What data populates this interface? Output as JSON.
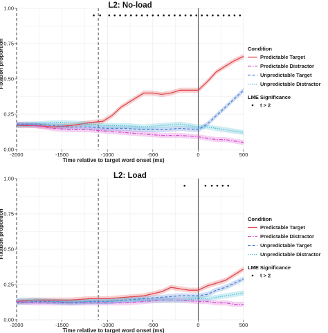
{
  "chart_data": [
    {
      "type": "line",
      "title": "L2: No-load",
      "xlabel": "Time relative to target word onset (ms)",
      "ylabel": "Fixation proportion",
      "xlim": [
        -2000,
        500
      ],
      "ylim": [
        0,
        1
      ],
      "xticks": [
        "-2000",
        "-1500",
        "-1000",
        "-500",
        "0",
        "500"
      ],
      "yticks": [
        "0.00",
        "0.25",
        "0.50",
        "0.75",
        "1.00"
      ],
      "vlines": [
        {
          "x": -2000,
          "style": "dashed"
        },
        {
          "x": -1100,
          "style": "dashed"
        },
        {
          "x": 0,
          "style": "solid"
        }
      ],
      "series": [
        {
          "name": "Predictable Target",
          "color": "#e0474c",
          "dash": "solid",
          "x": [
            -2000,
            -1800,
            -1600,
            -1400,
            -1200,
            -1050,
            -950,
            -850,
            -700,
            -600,
            -500,
            -400,
            -300,
            -200,
            -100,
            0,
            100,
            200,
            300,
            400,
            500
          ],
          "y": [
            0.17,
            0.17,
            0.16,
            0.17,
            0.19,
            0.2,
            0.24,
            0.3,
            0.36,
            0.4,
            0.4,
            0.39,
            0.4,
            0.42,
            0.42,
            0.42,
            0.48,
            0.55,
            0.59,
            0.63,
            0.66
          ]
        },
        {
          "name": "Predictable Distractor",
          "color": "#d94fd0",
          "dash": "dashdot",
          "x": [
            -2000,
            -1800,
            -1600,
            -1400,
            -1200,
            -1000,
            -800,
            -600,
            -400,
            -200,
            0,
            100,
            200,
            300,
            400,
            500
          ],
          "y": [
            0.18,
            0.17,
            0.15,
            0.14,
            0.14,
            0.13,
            0.12,
            0.11,
            0.1,
            0.1,
            0.09,
            0.08,
            0.07,
            0.07,
            0.06,
            0.05
          ]
        },
        {
          "name": "Unpredictable Target",
          "color": "#4d7fd4",
          "dash": "dashed",
          "x": [
            -2000,
            -1800,
            -1600,
            -1400,
            -1200,
            -1000,
            -800,
            -600,
            -400,
            -200,
            0,
            100,
            200,
            300,
            400,
            500
          ],
          "y": [
            0.18,
            0.18,
            0.17,
            0.16,
            0.16,
            0.15,
            0.15,
            0.14,
            0.14,
            0.15,
            0.14,
            0.18,
            0.24,
            0.3,
            0.36,
            0.42
          ]
        },
        {
          "name": "Unpredictable Distractor",
          "color": "#3fb8cf",
          "dash": "dotted",
          "x": [
            -2000,
            -1800,
            -1600,
            -1400,
            -1200,
            -1000,
            -800,
            -600,
            -400,
            -200,
            0,
            100,
            200,
            300,
            400,
            500
          ],
          "y": [
            0.17,
            0.18,
            0.19,
            0.19,
            0.18,
            0.17,
            0.17,
            0.16,
            0.17,
            0.18,
            0.16,
            0.16,
            0.15,
            0.14,
            0.13,
            0.12
          ]
        }
      ],
      "significance": {
        "y": 0.95,
        "x": [
          -1150,
          -1080,
          -980,
          -920,
          -860,
          -800,
          -740,
          -680,
          -620,
          -560,
          -500,
          -440,
          -380,
          -320,
          -260,
          -200,
          -140,
          -80,
          -20,
          40,
          100,
          160,
          220,
          280,
          340,
          400,
          460
        ]
      }
    },
    {
      "type": "line",
      "title": "L2: Load",
      "xlabel": "Time relative to target word onset (ms)",
      "ylabel": "Fixation proportion",
      "xlim": [
        -2000,
        500
      ],
      "ylim": [
        0,
        1
      ],
      "xticks": [
        "-2000",
        "-1500",
        "-1000",
        "-500",
        "0",
        "500"
      ],
      "yticks": [
        "0.00",
        "0.25",
        "0.50",
        "0.75",
        "1.00"
      ],
      "vlines": [
        {
          "x": -2000,
          "style": "dashed"
        },
        {
          "x": -1100,
          "style": "dashed"
        },
        {
          "x": 0,
          "style": "solid"
        }
      ],
      "series": [
        {
          "name": "Predictable Target",
          "color": "#e0474c",
          "dash": "solid",
          "x": [
            -2000,
            -1800,
            -1600,
            -1400,
            -1200,
            -1000,
            -800,
            -600,
            -400,
            -300,
            -200,
            -100,
            0,
            100,
            200,
            300,
            400,
            500
          ],
          "y": [
            0.13,
            0.14,
            0.14,
            0.14,
            0.15,
            0.15,
            0.16,
            0.17,
            0.2,
            0.23,
            0.22,
            0.21,
            0.21,
            0.24,
            0.26,
            0.28,
            0.32,
            0.36
          ]
        },
        {
          "name": "Predictable Distractor",
          "color": "#d94fd0",
          "dash": "dashdot",
          "x": [
            -2000,
            -1800,
            -1600,
            -1400,
            -1200,
            -1000,
            -800,
            -600,
            -400,
            -200,
            0,
            100,
            200,
            300,
            400,
            500
          ],
          "y": [
            0.13,
            0.12,
            0.12,
            0.12,
            0.12,
            0.12,
            0.12,
            0.13,
            0.14,
            0.14,
            0.13,
            0.13,
            0.12,
            0.12,
            0.11,
            0.11
          ]
        },
        {
          "name": "Unpredictable Target",
          "color": "#4d7fd4",
          "dash": "dashed",
          "x": [
            -2000,
            -1800,
            -1600,
            -1400,
            -1200,
            -1000,
            -800,
            -600,
            -400,
            -200,
            0,
            100,
            200,
            300,
            400,
            500
          ],
          "y": [
            0.12,
            0.13,
            0.13,
            0.12,
            0.13,
            0.13,
            0.14,
            0.15,
            0.16,
            0.17,
            0.17,
            0.18,
            0.21,
            0.23,
            0.26,
            0.29
          ]
        },
        {
          "name": "Unpredictable Distractor",
          "color": "#3fb8cf",
          "dash": "dotted",
          "x": [
            -2000,
            -1800,
            -1600,
            -1400,
            -1200,
            -1000,
            -800,
            -600,
            -400,
            -200,
            0,
            100,
            200,
            300,
            400,
            500
          ],
          "y": [
            0.14,
            0.14,
            0.13,
            0.13,
            0.13,
            0.13,
            0.14,
            0.14,
            0.14,
            0.14,
            0.15,
            0.15,
            0.16,
            0.17,
            0.18,
            0.19
          ]
        }
      ],
      "significance": {
        "y": 0.95,
        "x": [
          -150,
          80,
          150,
          210,
          270,
          330
        ]
      }
    }
  ],
  "legend": {
    "title": "Condition",
    "items": [
      {
        "label": "Predictable Target",
        "color": "#e0474c",
        "dash": "solid"
      },
      {
        "label": "Predictable Distractor",
        "color": "#d94fd0",
        "dash": "dashdot"
      },
      {
        "label": "Unpredictable Target",
        "color": "#4d7fd4",
        "dash": "dashed"
      },
      {
        "label": "Unpredictable Distractor",
        "color": "#3fb8cf",
        "dash": "dotted"
      }
    ],
    "sig_title": "LME Significance",
    "sig_label": "t > 2"
  }
}
